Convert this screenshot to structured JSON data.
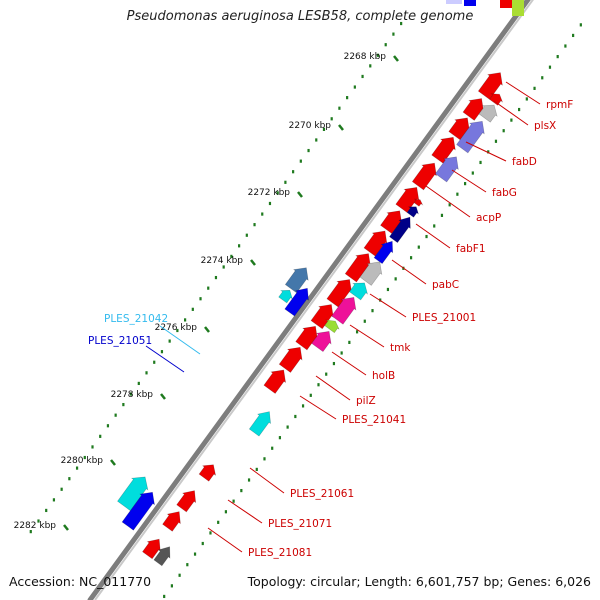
{
  "header": {
    "title": "Pseudomonas aeruginosa LESB58, complete genome"
  },
  "footer": {
    "accession": "Accession: NC_011770",
    "summary": "Topology: circular; Length: 6,601,757 bp; Genes: 6,026"
  },
  "colors": {
    "backbone": "#7d7d7d",
    "tick": "#1f7a1f",
    "label_red": "#cc0000",
    "label_cyan": "#33bbee",
    "label_blue": "#0000cc",
    "gene_red": "#ee0000",
    "gene_gray": "#bbbbbb",
    "gene_purple": "#7777dd",
    "gene_navy": "#000088",
    "gene_blue": "#0000ee",
    "gene_cyan": "#00dddd",
    "gene_magenta": "#ee1199",
    "gene_green": "#99dd33",
    "gene_steel": "#4477aa",
    "gene_dark": "#555555"
  },
  "kbp_labels": [
    "2268 kbp",
    "2270 kbp",
    "2272 kbp",
    "2274 kbp",
    "2276 kbp",
    "2278 kbp",
    "2280 kbp",
    "2282 kbp"
  ],
  "gene_labels": [
    {
      "id": "rpmF",
      "text": "rpmF",
      "color": "label_red"
    },
    {
      "id": "plsX",
      "text": "plsX",
      "color": "label_red"
    },
    {
      "id": "fabD",
      "text": "fabD",
      "color": "label_red"
    },
    {
      "id": "fabG",
      "text": "fabG",
      "color": "label_red"
    },
    {
      "id": "acpP",
      "text": "acpP",
      "color": "label_red"
    },
    {
      "id": "fabF1",
      "text": "fabF1",
      "color": "label_red"
    },
    {
      "id": "pabC",
      "text": "pabC",
      "color": "label_red"
    },
    {
      "id": "PLES_21001",
      "text": "PLES_21001",
      "color": "label_red"
    },
    {
      "id": "tmk",
      "text": "tmk",
      "color": "label_red"
    },
    {
      "id": "holB",
      "text": "holB",
      "color": "label_red"
    },
    {
      "id": "pilZ",
      "text": "pilZ",
      "color": "label_red"
    },
    {
      "id": "PLES_21041",
      "text": "PLES_21041",
      "color": "label_red"
    },
    {
      "id": "PLES_21061",
      "text": "PLES_21061",
      "color": "label_red"
    },
    {
      "id": "PLES_21071",
      "text": "PLES_21071",
      "color": "label_red"
    },
    {
      "id": "PLES_21081",
      "text": "PLES_21081",
      "color": "label_red"
    },
    {
      "id": "PLES_21042",
      "text": "PLES_21042",
      "color": "label_cyan"
    },
    {
      "id": "PLES_21051",
      "text": "PLES_21051",
      "color": "label_blue"
    }
  ]
}
